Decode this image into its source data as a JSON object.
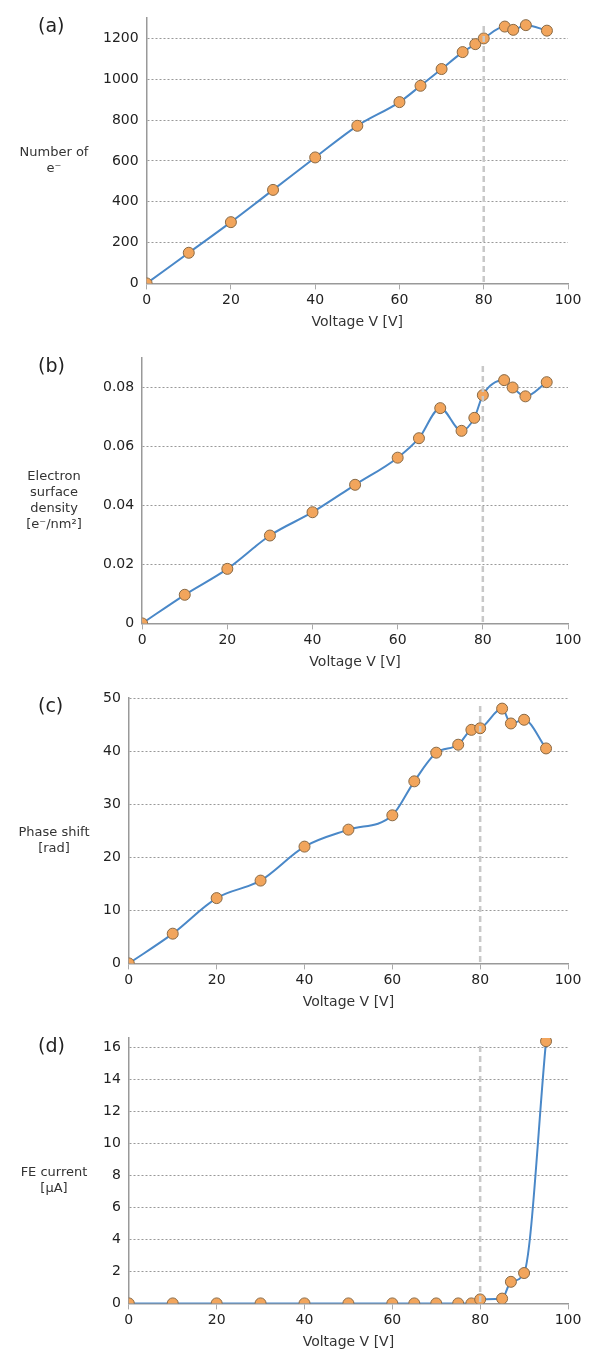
{
  "chart_data": [
    {
      "type": "line",
      "title": "(a)",
      "xlabel": "Voltage V [V]",
      "ylabel": "Number of e⁻",
      "x": [
        0,
        10,
        20,
        30,
        40,
        50,
        60,
        65,
        70,
        75,
        78,
        80,
        85,
        87,
        90,
        95
      ],
      "series": [
        {
          "color": "#4a88c8",
          "values": [
            0,
            150,
            300,
            458,
            617,
            772,
            888,
            968,
            1050,
            1133,
            1172,
            1200,
            1258,
            1242,
            1265,
            1238
          ]
        }
      ],
      "xlim": [
        0,
        100
      ],
      "xticks": [
        0,
        20,
        40,
        60,
        80,
        100
      ],
      "ylim": [
        0,
        1300
      ],
      "yticks": [
        0,
        200,
        400,
        600,
        800,
        1000,
        1200
      ],
      "grid": "y",
      "marker": "circle",
      "ref_lines": [
        {
          "axis": "x",
          "value": 80,
          "color": "#c8c8c8",
          "line_style": "dashed"
        }
      ]
    },
    {
      "type": "line",
      "title": "(b)",
      "xlabel": "Voltage V [V]",
      "ylabel": "Electron surface density [e⁻/nm²]",
      "x": [
        0,
        10,
        20,
        30,
        40,
        50,
        60,
        65,
        70,
        75,
        78,
        80,
        85,
        87,
        90,
        95
      ],
      "series": [
        {
          "color": "#4a88c8",
          "values": [
            0,
            0.0097,
            0.0185,
            0.0298,
            0.0377,
            0.047,
            0.0562,
            0.0628,
            0.073,
            0.0653,
            0.0697,
            0.0774,
            0.0825,
            0.08,
            0.077,
            0.0818
          ]
        }
      ],
      "xlim": [
        0,
        100
      ],
      "xticks": [
        0,
        20,
        40,
        60,
        80,
        100
      ],
      "ylim": [
        0,
        0.09
      ],
      "yticks": [
        0,
        0.02,
        0.04,
        0.06,
        0.08
      ],
      "grid": "y",
      "marker": "circle",
      "ref_lines": [
        {
          "axis": "x",
          "value": 80,
          "color": "#c8c8c8",
          "line_style": "dashed"
        }
      ]
    },
    {
      "type": "line",
      "title": "(c)",
      "xlabel": "Voltage V [V]",
      "ylabel": "Phase shift [rad]",
      "x": [
        0,
        10,
        20,
        30,
        40,
        50,
        60,
        65,
        70,
        75,
        78,
        80,
        85,
        87,
        90,
        95
      ],
      "series": [
        {
          "color": "#4a88c8",
          "values": [
            0,
            5.6,
            12.3,
            15.6,
            22.0,
            25.2,
            27.9,
            34.3,
            39.7,
            41.2,
            44.0,
            44.3,
            48.0,
            45.2,
            45.9,
            40.5
          ]
        }
      ],
      "xlim": [
        0,
        100
      ],
      "xticks": [
        0,
        20,
        40,
        60,
        80,
        100
      ],
      "ylim": [
        0,
        50
      ],
      "yticks": [
        0,
        10,
        20,
        30,
        40,
        50
      ],
      "grid": "y",
      "marker": "circle",
      "ref_lines": [
        {
          "axis": "x",
          "value": 80,
          "color": "#c8c8c8",
          "line_style": "dashed"
        }
      ]
    },
    {
      "type": "line",
      "title": "(d)",
      "xlabel": "Voltage V [V]",
      "ylabel": "FE current [μA]",
      "x": [
        0,
        10,
        20,
        30,
        40,
        50,
        60,
        65,
        70,
        75,
        78,
        80,
        85,
        87,
        90,
        95
      ],
      "series": [
        {
          "color": "#4a88c8",
          "values": [
            0,
            0,
            0,
            0,
            0,
            0,
            0,
            0,
            0,
            0,
            0,
            0.25,
            0.3,
            1.35,
            1.9,
            16.4
          ]
        }
      ],
      "xlim": [
        0,
        100
      ],
      "xticks": [
        0,
        20,
        40,
        60,
        80,
        100
      ],
      "ylim": [
        0,
        16.6
      ],
      "yticks": [
        0,
        2,
        4,
        6,
        8,
        10,
        12,
        14,
        16
      ],
      "grid": "y",
      "marker": "circle",
      "ref_lines": [
        {
          "axis": "x",
          "value": 80,
          "color": "#c8c8c8",
          "line_style": "dashed"
        }
      ]
    }
  ]
}
